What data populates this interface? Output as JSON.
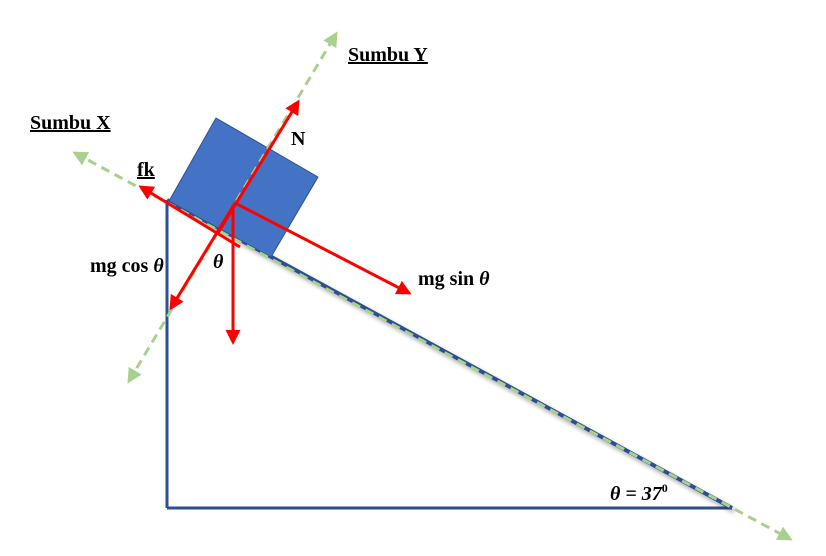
{
  "labels": {
    "axis_y": "Sumbu Y",
    "axis_x": "Sumbu X",
    "normal": "N",
    "friction": "fk",
    "mg_cos": "mg cos ",
    "mg_sin": "mg sin ",
    "theta": "θ",
    "angle_prefix": "θ = 37",
    "angle_sup": "0"
  },
  "colors": {
    "incline": "#2f4f8f",
    "block": "#4472c4",
    "block_border": "#2f528f",
    "force": "#ff0000",
    "axis": "#a9d18e"
  }
}
